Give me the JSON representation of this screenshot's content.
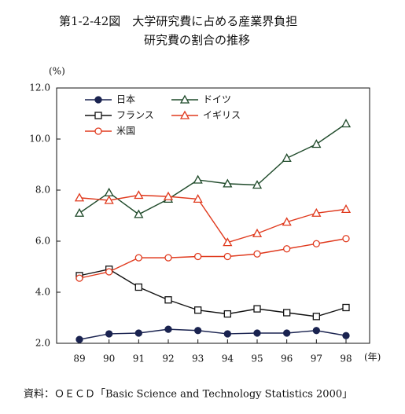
{
  "chart_data": {
    "type": "line",
    "title": "第1-2-42図　大学研究費に占める産業界負担",
    "subtitle": "研究費の割合の推移",
    "y_unit": "(%)",
    "x_unit": "(年)",
    "source": "資料：ＯＥＣＤ「Basic Science and Technology Statistics 2000」",
    "categories": [
      "89",
      "90",
      "91",
      "92",
      "93",
      "94",
      "95",
      "96",
      "97",
      "98"
    ],
    "ylim": [
      2,
      12
    ],
    "yticks": [
      {
        "value": 2,
        "label": "2.0"
      },
      {
        "value": 4,
        "label": "4.0"
      },
      {
        "value": 6,
        "label": "6.0"
      },
      {
        "value": 8,
        "label": "8.0"
      },
      {
        "value": 10,
        "label": "10.0"
      },
      {
        "value": 12,
        "label": "12.0"
      }
    ],
    "grid": false,
    "legend": "top-left",
    "series": [
      {
        "name": "日本",
        "color": "#1a2350",
        "marker": "circle-filled",
        "values": [
          2.15,
          2.37,
          2.4,
          2.55,
          2.5,
          2.37,
          2.4,
          2.4,
          2.5,
          2.3
        ]
      },
      {
        "name": "ドイツ",
        "color": "#1f4a2a",
        "marker": "triangle-open",
        "values": [
          7.1,
          7.9,
          7.05,
          7.65,
          8.4,
          8.25,
          8.2,
          9.25,
          9.8,
          10.6
        ]
      },
      {
        "name": "フランス",
        "color": "#111111",
        "marker": "square-open",
        "values": [
          4.65,
          4.9,
          4.2,
          3.7,
          3.3,
          3.15,
          3.35,
          3.2,
          3.05,
          3.4
        ]
      },
      {
        "name": "イギリス",
        "color": "#e03a1e",
        "marker": "triangle-open",
        "values": [
          7.7,
          7.6,
          7.8,
          7.75,
          7.65,
          5.95,
          6.3,
          6.75,
          7.1,
          7.25
        ]
      },
      {
        "name": "米国",
        "color": "#e03a1e",
        "marker": "circle-open",
        "values": [
          4.55,
          4.8,
          5.35,
          5.35,
          5.4,
          5.4,
          5.5,
          5.7,
          5.9,
          6.1
        ]
      }
    ]
  }
}
